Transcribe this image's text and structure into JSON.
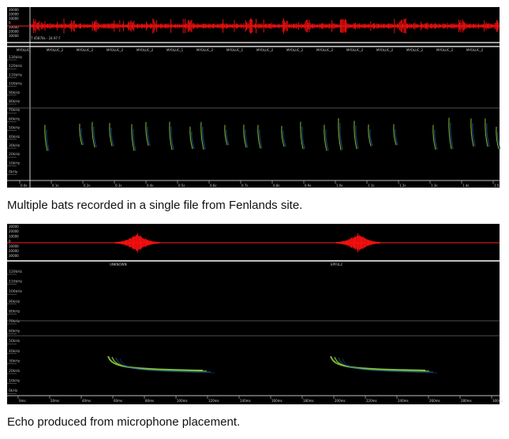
{
  "panel1": {
    "status_text": "7.45870s - 24.97 F",
    "species_labels": [
      "MYOLUC",
      "MYOLUC_2",
      "MYOLUC_2",
      "MYOLUC_2",
      "MYOLUC_2",
      "MYOLUC_1",
      "MYOLUC_2",
      "MYOLUC_1",
      "MYOLUC_2",
      "MYOLUC_2",
      "MYOLUC_2",
      "MYOLUC_2",
      "MYOLUC_2",
      "MYOLUC_2",
      "MYOLUC_2",
      "MYOLUC_2"
    ],
    "freq_labels": [
      "130kHz",
      "120kHz",
      "110kHz",
      "100kHz",
      "90kHz",
      "80kHz",
      "70kHz",
      "60kHz",
      "50kHz",
      "40kHz",
      "30kHz",
      "20kHz",
      "10kHz",
      "0kHz"
    ],
    "amp_labels": [
      "30000",
      "20000",
      "10000",
      "0",
      "10000",
      "20000",
      "30000"
    ],
    "time_labels": [
      "0.0s",
      "0.1s",
      "0.2s",
      "0.3s",
      "0.4s",
      "0.5s",
      "0.6s",
      "0.7s",
      "0.8s",
      "0.9s",
      "1.0s",
      "1.1s",
      "1.2s",
      "1.3s",
      "1.4s",
      "1.5s"
    ]
  },
  "caption1": "Multiple bats recorded in a single file from Fenlands site.",
  "panel2": {
    "species_labels": [
      "UNKNOWN",
      "EPFUL2"
    ],
    "freq_labels": [
      "120kHz",
      "110kHz",
      "100kHz",
      "90kHz",
      "80kHz",
      "70kHz",
      "60kHz",
      "50kHz",
      "40kHz",
      "30kHz",
      "20kHz",
      "10kHz",
      "0kHz"
    ],
    "amp_labels": [
      "30000",
      "20000",
      "10000",
      "0",
      "10000",
      "20000",
      "30000"
    ],
    "time_labels": [
      "0ms",
      "20ms",
      "40ms",
      "60ms",
      "80ms",
      "100ms",
      "120ms",
      "140ms",
      "160ms",
      "180ms",
      "200ms",
      "220ms",
      "240ms",
      "260ms",
      "280ms",
      "300ms"
    ]
  },
  "caption2": "Echo produced from microphone placement.",
  "colors": {
    "waveform": "#ff1010",
    "call_low": "#1f5fa0",
    "call_high": "#9adf3a",
    "background": "#000000"
  }
}
